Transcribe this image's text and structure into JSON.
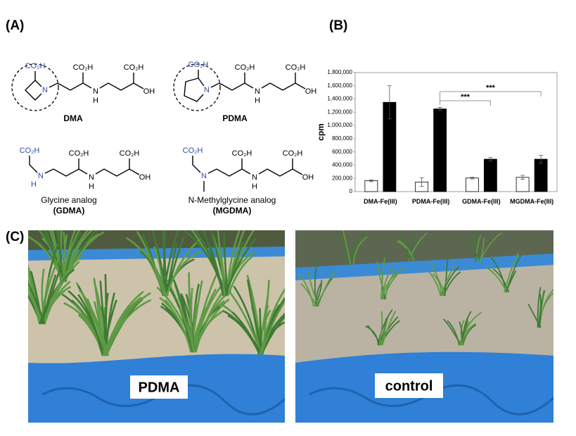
{
  "panel_labels": [
    "(A)",
    "(B)",
    "(C)"
  ],
  "molecules": [
    {
      "name": "DMA",
      "atoms": [
        "CO₂H",
        "N",
        "CO₂H",
        "N",
        "H",
        "CO₂H",
        "OH"
      ]
    },
    {
      "name": "PDMA",
      "atoms": [
        "CO₂H",
        "N",
        "CO₂H",
        "N",
        "H",
        "CO₂H",
        "OH"
      ]
    },
    {
      "name": "Glycine analog",
      "abbr": "(GDMA)",
      "atoms": [
        "CO₂H",
        "N",
        "H",
        "CO₂H",
        "N",
        "H",
        "CO₂H",
        "OH"
      ]
    },
    {
      "name": "N-Methylglycine analog",
      "abbr": "(MGDMA)",
      "atoms": [
        "CO₂H",
        "N",
        "CO₂H",
        "N",
        "H",
        "CO₂H",
        "OH"
      ]
    }
  ],
  "photos": [
    {
      "label": "PDMA"
    },
    {
      "label": "control"
    }
  ],
  "chart_data": {
    "type": "bar",
    "y_label": "cpm",
    "categories": [
      "DMA-Fe(III)",
      "PDMA-Fe(III)",
      "GDMA-Fe(III)",
      "MGDMA-Fe(III)"
    ],
    "series": [
      {
        "color": "#ffffff",
        "values": [
          165000,
          145000,
          205000,
          215000
        ],
        "errors": [
          15000,
          65000,
          15000,
          30000
        ]
      },
      {
        "color": "#000000",
        "values": [
          1350000,
          1250000,
          490000,
          490000
        ],
        "errors": [
          250000,
          25000,
          25000,
          60000
        ]
      }
    ],
    "ylim": [
      0,
      1800000
    ],
    "yticks": [
      0,
      {
        "value": 200000,
        "label": "200,000"
      },
      {
        "value": 400000,
        "label": "400,000"
      },
      {
        "value": 600000,
        "label": "600,000"
      },
      {
        "value": 800000,
        "label": "800,000"
      },
      {
        "value": 1000000,
        "label": "1,000,000"
      },
      {
        "value": 1200000,
        "label": "1,200,000"
      },
      {
        "value": 1400000,
        "label": "1,400,000"
      },
      {
        "value": 1600000,
        "label": "1,600,000"
      },
      {
        "value": 1800000,
        "label": "1,800,000"
      }
    ],
    "annotations": [
      {
        "text": "***"
      },
      {
        "text": "***"
      }
    ]
  }
}
